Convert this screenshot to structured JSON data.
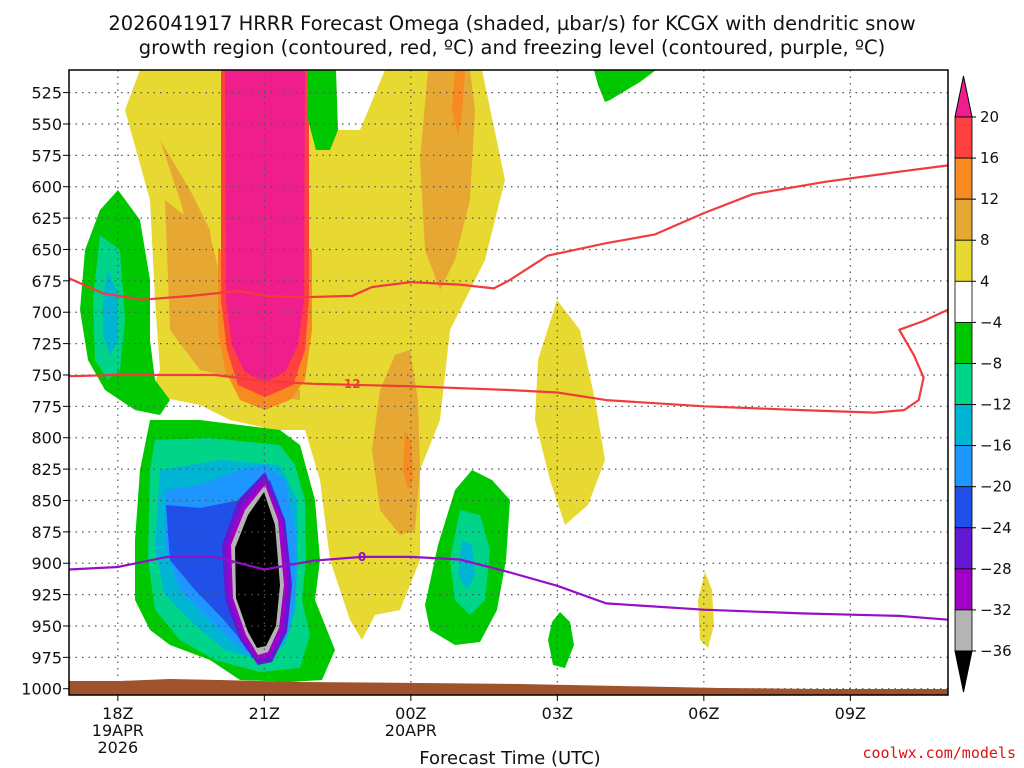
{
  "chart_data": {
    "type": "heatmap",
    "title_line1": "2026041917 HRRR Forecast Omega (shaded, µbar/s) for KCGX with dendritic snow",
    "title_line2": "growth region (contoured, red, ºC) and freezing level (contoured, purple, ºC)",
    "xlabel": "Forecast Time (UTC)",
    "credit": "coolwx.com/models",
    "x_ticks": [
      {
        "hour": 18,
        "lines": [
          "18Z",
          "19APR",
          "2026"
        ]
      },
      {
        "hour": 21,
        "lines": [
          "21Z"
        ]
      },
      {
        "hour": 24,
        "lines": [
          "00Z",
          "20APR"
        ]
      },
      {
        "hour": 27,
        "lines": [
          "03Z"
        ]
      },
      {
        "hour": 30,
        "lines": [
          "06Z"
        ]
      },
      {
        "hour": 33,
        "lines": [
          "09Z"
        ]
      }
    ],
    "xlim_hours": [
      17,
      35
    ],
    "y_ticks": [
      525,
      550,
      575,
      600,
      625,
      650,
      675,
      700,
      725,
      750,
      775,
      800,
      825,
      850,
      875,
      900,
      925,
      950,
      975,
      1000
    ],
    "ylim_hPa": [
      1005,
      507
    ],
    "grid": true,
    "colorbar": {
      "labels": [
        "20",
        "16",
        "12",
        "8",
        "4",
        "−4",
        "−8",
        "−12",
        "−16",
        "−20",
        "−24",
        "−28",
        "−32",
        "−36"
      ],
      "colors": [
        "#ff3f40",
        "#f78a20",
        "#e6a832",
        "#e8d832",
        "#ffffff",
        "#00c800",
        "#00d488",
        "#00b4d4",
        "#1e96ff",
        "#2050e8",
        "#6418d4",
        "#a000c8",
        "#b4b4b4"
      ],
      "top_color": "#f01e8c",
      "bottom_color": "#000000"
    },
    "contour_labels": {
      "red": "12",
      "purple": "0"
    },
    "series": [
      {
        "color": "#f03c3c",
        "points": [
          [
            17.0,
            673
          ],
          [
            17.7,
            685
          ],
          [
            18.5,
            690
          ],
          [
            19.5,
            687
          ],
          [
            20.5,
            683
          ],
          [
            21.0,
            687
          ],
          [
            21.8,
            688
          ],
          [
            22.8,
            687
          ],
          [
            23.2,
            680
          ],
          [
            24.0,
            676
          ],
          [
            25.0,
            678
          ],
          [
            25.7,
            681
          ],
          [
            26.0,
            675
          ],
          [
            26.8,
            655
          ],
          [
            28.0,
            645
          ],
          [
            29.0,
            638
          ],
          [
            30.0,
            621
          ],
          [
            31.0,
            606
          ],
          [
            32.5,
            596
          ],
          [
            34.0,
            588
          ],
          [
            35.0,
            583
          ]
        ]
      },
      {
        "color": "#f03c3c",
        "points": [
          [
            17.0,
            751
          ],
          [
            18.0,
            750
          ],
          [
            20.0,
            750
          ],
          [
            21.0,
            755
          ],
          [
            22.0,
            757
          ],
          [
            24.0,
            759
          ],
          [
            26.0,
            762
          ],
          [
            27.0,
            764
          ],
          [
            28.0,
            770
          ],
          [
            30.0,
            775
          ],
          [
            32.0,
            778
          ],
          [
            33.5,
            780
          ],
          [
            34.1,
            778
          ],
          [
            34.4,
            770
          ],
          [
            34.5,
            752
          ],
          [
            34.3,
            734
          ],
          [
            34.0,
            714
          ],
          [
            34.5,
            707
          ],
          [
            35.0,
            698
          ]
        ]
      },
      {
        "color": "#9410c8",
        "points": [
          [
            17.0,
            905
          ],
          [
            18.0,
            903
          ],
          [
            19.0,
            895
          ],
          [
            20.0,
            895
          ],
          [
            21.0,
            905
          ],
          [
            22.0,
            898
          ],
          [
            23.0,
            895
          ],
          [
            24.0,
            895
          ],
          [
            25.0,
            897
          ],
          [
            26.0,
            907
          ],
          [
            27.0,
            918
          ],
          [
            28.0,
            932
          ],
          [
            30.0,
            937
          ],
          [
            32.0,
            940
          ],
          [
            34.0,
            942
          ],
          [
            35.0,
            945
          ]
        ]
      }
    ]
  }
}
